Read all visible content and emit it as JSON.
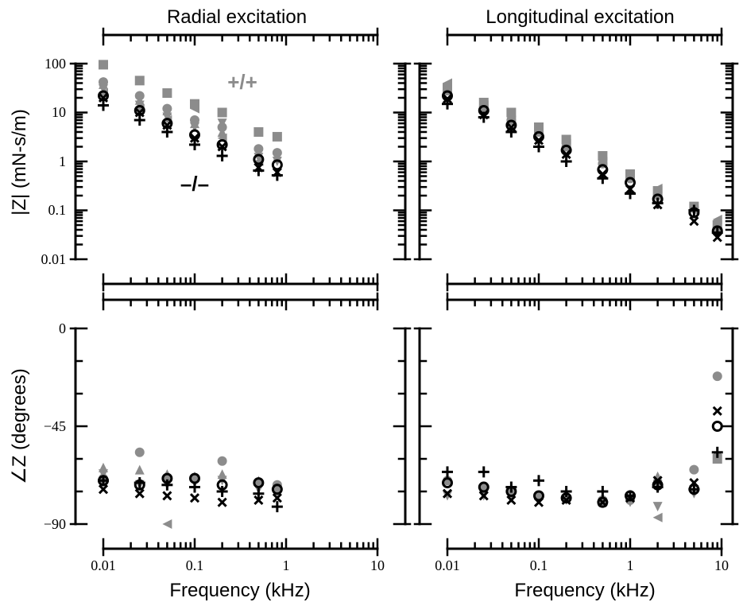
{
  "chart_data": [
    {
      "panel": "radial-magnitude",
      "type": "scatter",
      "title": "Radial excitation",
      "ylabel": "|Z| (mN-s/m)",
      "xscale": "log",
      "yscale": "log",
      "xlim": [
        0.01,
        10
      ],
      "ylim": [
        0.01,
        100
      ],
      "yticks": [
        "0.01",
        "0.1",
        "1",
        "10",
        "100"
      ],
      "annotations": [
        {
          "text": "+/+",
          "x": 0.32,
          "y": 28,
          "color": "#8c8c8c"
        },
        {
          "text": "–/–",
          "x": 0.1,
          "y": 0.48,
          "color": "#000000"
        }
      ],
      "series": [
        {
          "marker": "square",
          "color": "#8c8c8c",
          "x": [
            0.01,
            0.025,
            0.05,
            0.1,
            0.2,
            0.5,
            0.8
          ],
          "y": [
            95,
            45,
            25,
            15,
            10,
            4,
            3.2
          ]
        },
        {
          "marker": "circle",
          "color": "#8c8c8c",
          "x": [
            0.01,
            0.025,
            0.05,
            0.1,
            0.2,
            0.5,
            0.8
          ],
          "y": [
            42,
            22,
            12,
            7,
            5,
            1.8,
            1.5
          ]
        },
        {
          "marker": "tri-up",
          "color": "#8c8c8c",
          "x": [
            0.01,
            0.025,
            0.05,
            0.1,
            0.2,
            0.5,
            0.8
          ],
          "y": [
            38,
            18,
            11,
            6,
            4,
            1.5,
            1.2
          ]
        },
        {
          "marker": "tri-down",
          "color": "#8c8c8c",
          "x": [
            0.01,
            0.025,
            0.05,
            0.1,
            0.2,
            0.5,
            0.8
          ],
          "y": [
            30,
            14,
            8,
            5,
            6,
            1.2,
            1
          ]
        },
        {
          "marker": "tri-left",
          "color": "#8c8c8c",
          "x": [
            0.01,
            0.025,
            0.05,
            0.1,
            0.2,
            0.5
          ],
          "y": [
            25,
            12,
            7,
            12,
            3,
            1
          ]
        },
        {
          "marker": "open-circle",
          "color": "#000000",
          "x": [
            0.01,
            0.025,
            0.05,
            0.1,
            0.2,
            0.5,
            0.8
          ],
          "y": [
            22,
            11,
            6,
            3.5,
            2.2,
            1.1,
            0.85
          ]
        },
        {
          "marker": "x",
          "color": "#000000",
          "x": [
            0.01,
            0.025,
            0.05,
            0.1,
            0.2,
            0.5,
            0.8
          ],
          "y": [
            20,
            10,
            5.5,
            3,
            2,
            0.75,
            0.6
          ]
        },
        {
          "marker": "plus",
          "color": "#000000",
          "x": [
            0.01,
            0.025,
            0.05,
            0.1,
            0.2,
            0.5,
            0.8
          ],
          "y": [
            14,
            7,
            4,
            2.2,
            1.3,
            0.65,
            0.52
          ]
        }
      ]
    },
    {
      "panel": "longitudinal-magnitude",
      "type": "scatter",
      "title": "Longitudinal excitation",
      "xscale": "log",
      "yscale": "log",
      "xlim": [
        0.01,
        10
      ],
      "ylim": [
        0.01,
        100
      ],
      "series": [
        {
          "marker": "square",
          "color": "#8c8c8c",
          "x": [
            0.01,
            0.025,
            0.05,
            0.1,
            0.2,
            0.5,
            1,
            2,
            5,
            9
          ],
          "y": [
            32,
            16,
            10,
            5,
            2.8,
            1.3,
            0.55,
            0.25,
            0.12,
            0.05
          ]
        },
        {
          "marker": "tri-left",
          "color": "#8c8c8c",
          "x": [
            0.01,
            0.025,
            0.05,
            0.1,
            0.2,
            0.5,
            1,
            2,
            5,
            9
          ],
          "y": [
            40,
            14,
            7,
            4,
            2.3,
            1,
            0.45,
            0.28,
            0.1,
            0.065
          ]
        },
        {
          "marker": "circle",
          "color": "#8c8c8c",
          "x": [
            0.01,
            0.025,
            0.05,
            0.1,
            0.2,
            0.5,
            1,
            2,
            5,
            9
          ],
          "y": [
            28,
            13,
            7,
            4,
            2,
            0.9,
            0.45,
            0.2,
            0.11,
            0.045
          ]
        },
        {
          "marker": "open-circle",
          "color": "#000000",
          "x": [
            0.01,
            0.025,
            0.05,
            0.1,
            0.2,
            0.5,
            1,
            2,
            5,
            9
          ],
          "y": [
            22,
            11,
            5.5,
            3.2,
            1.7,
            0.68,
            0.37,
            0.17,
            0.09,
            0.038
          ]
        },
        {
          "marker": "x",
          "color": "#000000",
          "x": [
            0.01,
            0.025,
            0.05,
            0.1,
            0.2,
            0.5,
            1,
            2,
            5,
            9
          ],
          "y": [
            19,
            9,
            5,
            2.7,
            1.4,
            0.55,
            0.27,
            0.13,
            0.06,
            0.028
          ]
        },
        {
          "marker": "plus",
          "color": "#000000",
          "x": [
            0.01,
            0.025,
            0.05,
            0.1,
            0.2,
            0.5,
            1,
            2,
            5,
            9
          ],
          "y": [
            15,
            8,
            4,
            2,
            1,
            0.45,
            0.22,
            0.14,
            0.1,
            0.035
          ]
        }
      ]
    },
    {
      "panel": "radial-phase",
      "type": "scatter",
      "xlabel": "Frequency (kHz)",
      "ylabel": "∠Z (degrees)",
      "xscale": "log",
      "yscale": "linear",
      "xlim": [
        0.01,
        10
      ],
      "ylim": [
        -90,
        0
      ],
      "yticks": [
        "−90",
        "−45",
        "0"
      ],
      "xticks": [
        "0.01",
        "0.1",
        "1",
        "10"
      ],
      "series": [
        {
          "marker": "circle",
          "color": "#8c8c8c",
          "x": [
            0.01,
            0.025,
            0.05,
            0.1,
            0.2,
            0.5,
            0.8
          ],
          "y": [
            -69,
            -57,
            -69,
            -69,
            -61,
            -71,
            -72
          ]
        },
        {
          "marker": "tri-up",
          "color": "#8c8c8c",
          "x": [
            0.01,
            0.025,
            0.05,
            0.1,
            0.2,
            0.5,
            0.8
          ],
          "y": [
            -64,
            -65,
            -67,
            -68,
            -67,
            -70,
            -73
          ]
        },
        {
          "marker": "tri-down",
          "color": "#8c8c8c",
          "x": [
            0.01,
            0.025,
            0.05,
            0.1,
            0.2,
            0.5,
            0.8
          ],
          "y": [
            -67,
            -72,
            -72,
            -71,
            -70,
            -74,
            -75
          ]
        },
        {
          "marker": "tri-left",
          "color": "#8c8c8c",
          "x": [
            0.05
          ],
          "y": [
            -90
          ]
        },
        {
          "marker": "open-circle",
          "color": "#000000",
          "x": [
            0.01,
            0.025,
            0.05,
            0.1,
            0.2,
            0.5,
            0.8
          ],
          "y": [
            -70,
            -72,
            -69,
            -69,
            -72,
            -71,
            -74
          ]
        },
        {
          "marker": "x",
          "color": "#000000",
          "x": [
            0.01,
            0.025,
            0.05,
            0.1,
            0.2,
            0.5,
            0.8
          ],
          "y": [
            -74,
            -76,
            -77,
            -78,
            -80,
            -79,
            -78
          ]
        },
        {
          "marker": "plus",
          "color": "#000000",
          "x": [
            0.01,
            0.025,
            0.05,
            0.1,
            0.2,
            0.5,
            0.8
          ],
          "y": [
            -70,
            -71,
            -72,
            -73,
            -75,
            -76,
            -82
          ]
        }
      ]
    },
    {
      "panel": "longitudinal-phase",
      "type": "scatter",
      "xlabel": "Frequency (kHz)",
      "xscale": "log",
      "yscale": "linear",
      "xlim": [
        0.01,
        10
      ],
      "ylim": [
        -90,
        0
      ],
      "xticks": [
        "0.01",
        "0.1",
        "1",
        "10"
      ],
      "series": [
        {
          "marker": "circle",
          "color": "#8c8c8c",
          "x": [
            0.01,
            0.025,
            0.05,
            0.1,
            0.2,
            0.5,
            1,
            2,
            5,
            9
          ],
          "y": [
            -70,
            -73,
            -75,
            -77,
            -78,
            -79,
            -79,
            -72,
            -65,
            -22
          ]
        },
        {
          "marker": "tri-up",
          "color": "#8c8c8c",
          "x": [
            2
          ],
          "y": [
            -68
          ]
        },
        {
          "marker": "tri-down",
          "color": "#8c8c8c",
          "x": [
            0.01,
            0.025,
            0.05,
            0.1,
            0.2,
            0.5,
            1,
            2,
            5,
            9
          ],
          "y": [
            -77,
            -77,
            -78,
            -78,
            -79,
            -80,
            -80,
            -82,
            -76,
            -59
          ]
        },
        {
          "marker": "tri-left",
          "color": "#8c8c8c",
          "x": [
            2
          ],
          "y": [
            -87
          ]
        },
        {
          "marker": "square",
          "color": "#8c8c8c",
          "x": [
            9
          ],
          "y": [
            -60
          ]
        },
        {
          "marker": "open-circle",
          "color": "#000000",
          "x": [
            0.01,
            0.025,
            0.05,
            0.1,
            0.2,
            0.5,
            1,
            2,
            5,
            9
          ],
          "y": [
            -71,
            -73,
            -75,
            -77,
            -78,
            -80,
            -77,
            -72,
            -74,
            -45
          ]
        },
        {
          "marker": "x",
          "color": "#000000",
          "x": [
            0.01,
            0.025,
            0.05,
            0.1,
            0.2,
            0.5,
            1,
            2,
            5,
            9
          ],
          "y": [
            -76,
            -77,
            -79,
            -80,
            -79,
            -80,
            -78,
            -70,
            -71,
            -38
          ]
        },
        {
          "marker": "plus",
          "color": "#000000",
          "x": [
            0.01,
            0.025,
            0.05,
            0.1,
            0.2,
            0.5,
            1,
            2,
            5,
            9
          ],
          "y": [
            -66,
            -66,
            -73,
            -70,
            -75,
            -75,
            -77,
            -73,
            -74,
            -57
          ]
        }
      ]
    }
  ]
}
